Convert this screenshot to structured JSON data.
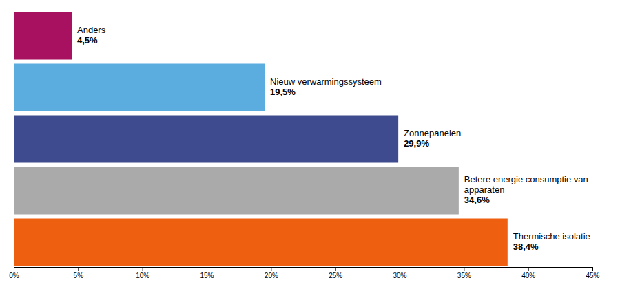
{
  "chart_data": {
    "type": "bar",
    "orientation": "horizontal",
    "categories": [
      "Anders",
      "Nieuw verwarmingssysteem",
      "Zonnepanelen",
      "Betere energie consumptie van apparaten",
      "Thermische isolatie"
    ],
    "values": [
      4.5,
      19.5,
      29.9,
      34.6,
      38.4
    ],
    "value_labels": [
      "4,5%",
      "19,5%",
      "29,9%",
      "34,6%",
      "38,4%"
    ],
    "colors": [
      "#A81060",
      "#5BADE0",
      "#3E4B8E",
      "#AAAAAA",
      "#EE6010"
    ],
    "xlim": [
      0,
      45
    ],
    "xticks": [
      {
        "value": 0,
        "label": "0%"
      },
      {
        "value": 5,
        "label": "5%"
      },
      {
        "value": 10,
        "label": "10%"
      },
      {
        "value": 15,
        "label": "15%"
      },
      {
        "value": 20,
        "label": "20%"
      },
      {
        "value": 25,
        "label": "25%"
      },
      {
        "value": 30,
        "label": "30%"
      },
      {
        "value": 35,
        "label": "35%"
      },
      {
        "value": 40,
        "label": "40%"
      },
      {
        "value": 45,
        "label": "45%"
      }
    ],
    "grid": false,
    "data_labels": true,
    "tick_labels": "x"
  }
}
